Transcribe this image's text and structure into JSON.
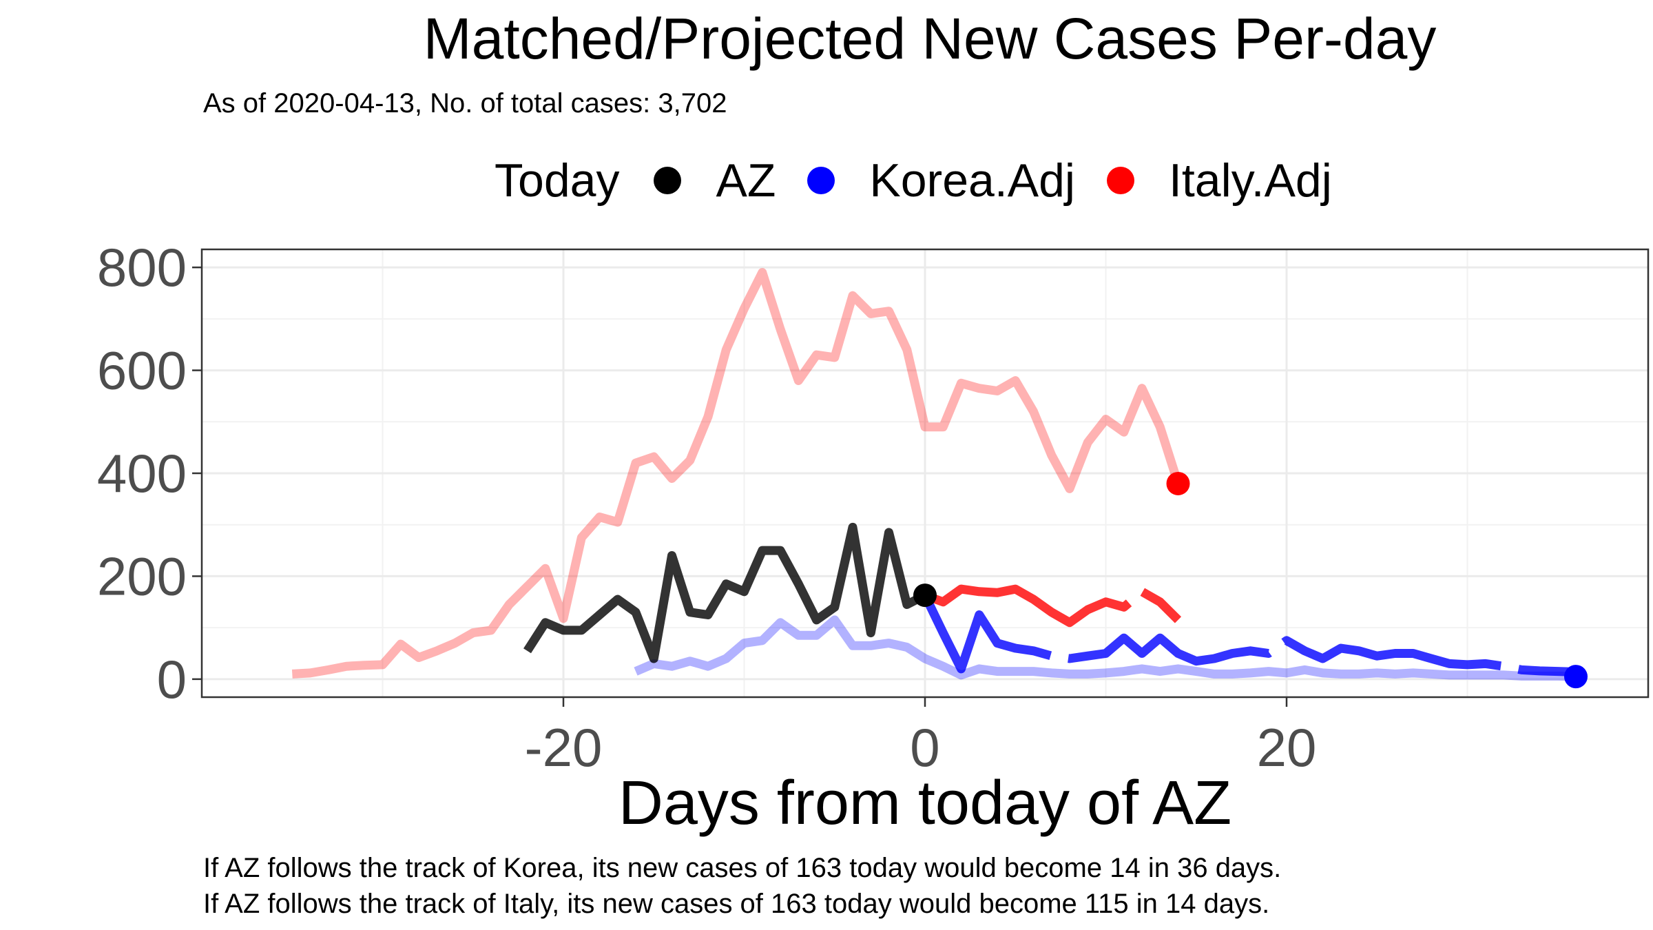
{
  "chart_data": {
    "type": "line",
    "title": "Matched/Projected New Cases Per-day",
    "subtitle": "As of 2020-04-13, No. of total cases: 3,702",
    "xlabel": "Days from today of AZ",
    "ylabel": "",
    "xlim": [
      -40,
      40
    ],
    "ylim": [
      -35,
      835
    ],
    "x_ticks": [
      -20,
      0,
      20
    ],
    "y_ticks": [
      0,
      200,
      400,
      600,
      800
    ],
    "legend": {
      "title": "Today",
      "position": "top",
      "items": [
        {
          "label": "AZ",
          "color": "#000000"
        },
        {
          "label": "Korea.Adj",
          "color": "#0000ff"
        },
        {
          "label": "Italy.Adj",
          "color": "#ff0000"
        }
      ]
    },
    "series": [
      {
        "id": "italy-past",
        "color": "#ff0000",
        "opacity": 0.3,
        "dashed": false,
        "x": [
          -35,
          -34,
          -33,
          -32,
          -31,
          -30,
          -29,
          -28,
          -27,
          -26,
          -25,
          -24,
          -23,
          -22,
          -21,
          -20,
          -19,
          -18,
          -17,
          -16,
          -15,
          -14,
          -13,
          -12,
          -11,
          -10,
          -9,
          -8,
          -7,
          -6,
          -5,
          -4,
          -3,
          -2,
          -1,
          0,
          1,
          2,
          3,
          4,
          5,
          6,
          7,
          8,
          9,
          10,
          11,
          12,
          13,
          14
        ],
        "y": [
          10,
          12,
          18,
          25,
          27,
          28,
          68,
          42,
          55,
          70,
          90,
          95,
          145,
          180,
          215,
          118,
          275,
          315,
          305,
          420,
          432,
          390,
          425,
          510,
          640,
          720,
          790,
          680,
          580,
          630,
          625,
          745,
          710,
          715,
          640,
          490,
          490,
          575,
          565,
          560,
          580,
          520,
          435,
          370,
          460,
          505,
          480,
          565,
          490,
          380
        ]
      },
      {
        "id": "korea-past",
        "color": "#0000ff",
        "opacity": 0.3,
        "dashed": false,
        "x": [
          -16,
          -15,
          -14,
          -13,
          -12,
          -11,
          -10,
          -9,
          -8,
          -7,
          -6,
          -5,
          -4,
          -3,
          -2,
          -1,
          0,
          1,
          2,
          3,
          4,
          5,
          6,
          7,
          8,
          9,
          10,
          11,
          12,
          13,
          14,
          15,
          16,
          17,
          18,
          19,
          20,
          21,
          22,
          23,
          24,
          25,
          26,
          27,
          28,
          29,
          30,
          31,
          32,
          33,
          34,
          35,
          36
        ],
        "y": [
          15,
          30,
          25,
          35,
          25,
          40,
          70,
          75,
          110,
          85,
          85,
          115,
          65,
          65,
          70,
          62,
          40,
          25,
          8,
          20,
          15,
          15,
          15,
          12,
          10,
          10,
          12,
          15,
          20,
          15,
          20,
          15,
          10,
          10,
          12,
          15,
          12,
          18,
          12,
          10,
          10,
          12,
          10,
          12,
          10,
          8,
          8,
          8,
          8,
          6,
          6,
          6,
          5
        ]
      },
      {
        "id": "az-past",
        "color": "#000000",
        "opacity": 0.8,
        "dashed": false,
        "x": [
          -22,
          -21,
          -20,
          -19,
          -18,
          -17,
          -16,
          -15,
          -14,
          -13,
          -12,
          -11,
          -10,
          -9,
          -8,
          -7,
          -6,
          -5,
          -4,
          -3,
          -2,
          -1,
          0
        ],
        "y": [
          55,
          110,
          95,
          95,
          125,
          155,
          130,
          40,
          240,
          130,
          125,
          185,
          170,
          250,
          250,
          185,
          115,
          140,
          295,
          90,
          285,
          145,
          163
        ]
      },
      {
        "id": "korea-proj",
        "color": "#0000ff",
        "opacity": 0.8,
        "dashed": true,
        "x": [
          0,
          1,
          2,
          3,
          4,
          5,
          6,
          7,
          8,
          9,
          10,
          11,
          12,
          13,
          14,
          15,
          16,
          17,
          18,
          19,
          20,
          21,
          22,
          23,
          24,
          25,
          26,
          27,
          28,
          29,
          30,
          31,
          32,
          33,
          34,
          35,
          36
        ],
        "y": [
          163,
          90,
          20,
          125,
          70,
          60,
          55,
          45,
          40,
          45,
          50,
          80,
          50,
          80,
          50,
          35,
          40,
          50,
          55,
          50,
          75,
          55,
          40,
          60,
          55,
          45,
          50,
          50,
          40,
          30,
          28,
          30,
          25,
          18,
          16,
          15,
          14
        ]
      },
      {
        "id": "italy-proj",
        "color": "#ff0000",
        "opacity": 0.8,
        "dashed": true,
        "x": [
          0,
          1,
          2,
          3,
          4,
          5,
          6,
          7,
          8,
          9,
          10,
          11,
          12,
          13,
          14
        ],
        "y": [
          163,
          150,
          175,
          170,
          168,
          175,
          155,
          130,
          110,
          135,
          150,
          140,
          170,
          150,
          115
        ]
      }
    ],
    "points": [
      {
        "series": "Italy.Adj",
        "x": 14,
        "y": 380,
        "color": "#ff0000"
      },
      {
        "series": "AZ",
        "x": 0,
        "y": 163,
        "color": "#000000"
      },
      {
        "series": "Korea.Adj",
        "x": 36,
        "y": 5,
        "color": "#0000ff"
      }
    ]
  },
  "captions": [
    "If AZ follows the track of Korea, its new cases of 163 today would become 14 in 36 days.",
    "If AZ follows the track of Italy, its new cases of 163 today would become 115 in 14 days."
  ]
}
